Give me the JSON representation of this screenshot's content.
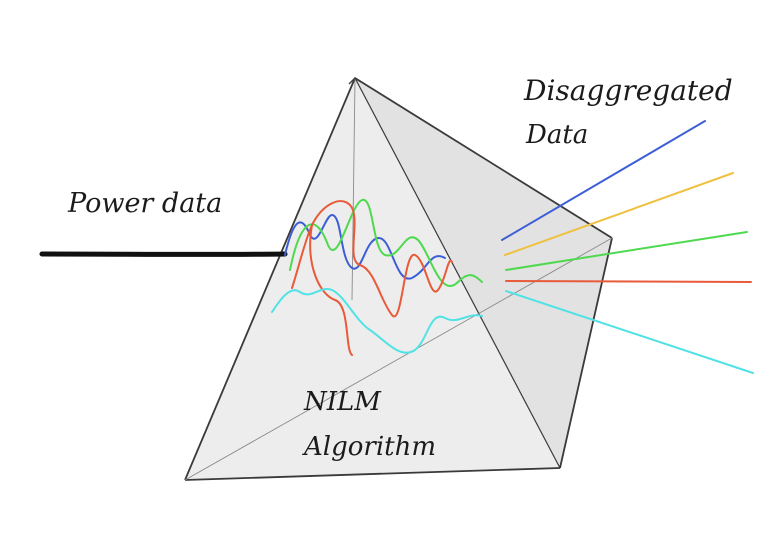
{
  "labels": {
    "input": "Power data",
    "output_line1": "Disaggregated",
    "output_line2": "Data",
    "center_line1": "NILM",
    "center_line2": "Algorithm"
  },
  "colors": {
    "background": "#ffffff",
    "prism_fill": "#e9e9e9",
    "prism_edge": "#3a3a3a",
    "input_beam": "#111111",
    "blue": "#3c5fd6",
    "yellow": "#f0c040",
    "green": "#4fd94f",
    "red": "#e85a3a",
    "cyan": "#52e2e6"
  },
  "beams": [
    {
      "color_key": "blue"
    },
    {
      "color_key": "yellow"
    },
    {
      "color_key": "green"
    },
    {
      "color_key": "red"
    },
    {
      "color_key": "cyan"
    }
  ]
}
